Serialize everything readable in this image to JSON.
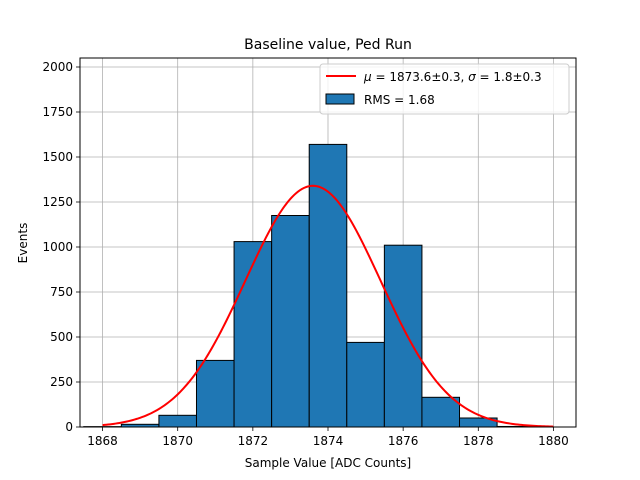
{
  "chart_data": {
    "type": "bar",
    "title": "Baseline value, Ped Run",
    "xlabel": "Sample Value [ADC Counts]",
    "ylabel": "Events",
    "xlim": [
      1867.4,
      1880.6
    ],
    "ylim": [
      0,
      2050
    ],
    "xticks": [
      1868,
      1870,
      1872,
      1874,
      1876,
      1878,
      1880
    ],
    "xtick_labels": [
      "1868",
      "1870",
      "1872",
      "1874",
      "1876",
      "1878",
      "1880"
    ],
    "yticks": [
      0,
      250,
      500,
      750,
      1000,
      1250,
      1500,
      1750,
      2000
    ],
    "ytick_labels": [
      "0",
      "250",
      "500",
      "750",
      "1000",
      "1250",
      "1500",
      "1750",
      "2000"
    ],
    "grid": true,
    "legend_position": "top-right",
    "histogram": {
      "name": "RMS = 1.68",
      "color": "#1f77b4",
      "edge_color": "#000000",
      "bins": [
        {
          "x0": 1867.5,
          "x1": 1868.5,
          "count": 2
        },
        {
          "x0": 1868.5,
          "x1": 1869.5,
          "count": 15
        },
        {
          "x0": 1869.5,
          "x1": 1870.5,
          "count": 65
        },
        {
          "x0": 1870.5,
          "x1": 1871.5,
          "count": 370
        },
        {
          "x0": 1871.5,
          "x1": 1872.5,
          "count": 1030
        },
        {
          "x0": 1872.5,
          "x1": 1873.5,
          "count": 1175
        },
        {
          "x0": 1873.5,
          "x1": 1874.5,
          "count": 1570
        },
        {
          "x0": 1874.5,
          "x1": 1875.5,
          "count": 470
        },
        {
          "x0": 1875.5,
          "x1": 1876.5,
          "count": 1010
        },
        {
          "x0": 1876.5,
          "x1": 1877.5,
          "count": 165
        },
        {
          "x0": 1877.5,
          "x1": 1878.5,
          "count": 50
        },
        {
          "x0": 1878.5,
          "x1": 1879.5,
          "count": 3
        }
      ]
    },
    "fit": {
      "name_prefix": "μ",
      "name_mid": " = 1873.6±0.3, ",
      "name_sigma": "σ",
      "name_suffix": " = 1.8±0.3",
      "type": "gaussian",
      "amplitude": 1340,
      "mean": 1873.6,
      "sigma": 1.8,
      "x_range": [
        1868,
        1880
      ],
      "color": "#ff0000"
    }
  }
}
